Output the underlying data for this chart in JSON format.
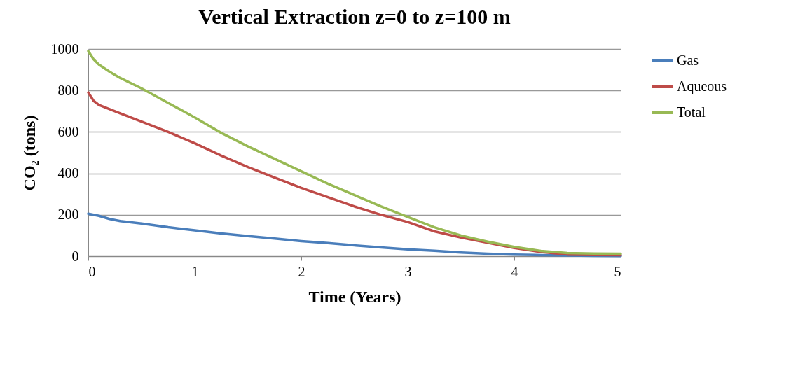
{
  "chart_data": {
    "type": "line",
    "title": "Vertical Extraction z=0 to z=100 m",
    "xlabel": "Time (Years)",
    "ylabel": "CO₂ (tons)",
    "x": [
      0,
      0.05,
      0.1,
      0.2,
      0.3,
      0.5,
      0.75,
      1,
      1.25,
      1.5,
      1.75,
      2,
      2.25,
      2.5,
      2.75,
      3,
      3.25,
      3.5,
      3.75,
      4,
      4.25,
      4.5,
      4.75,
      5
    ],
    "series": [
      {
        "name": "Gas",
        "color": "#4a7ebb",
        "values": [
          205,
          200,
          195,
          180,
          170,
          158,
          140,
          125,
          110,
          97,
          85,
          73,
          63,
          52,
          42,
          33,
          26,
          18,
          12,
          8,
          5,
          3,
          2,
          1
        ]
      },
      {
        "name": "Aqueous",
        "color": "#be4b48",
        "values": [
          790,
          750,
          730,
          710,
          690,
          650,
          600,
          545,
          485,
          430,
          380,
          330,
          285,
          240,
          200,
          165,
          120,
          90,
          65,
          40,
          20,
          8,
          6,
          5
        ]
      },
      {
        "name": "Total",
        "color": "#98b954",
        "values": [
          990,
          950,
          925,
          890,
          860,
          810,
          740,
          670,
          595,
          530,
          470,
          410,
          350,
          295,
          240,
          190,
          140,
          100,
          70,
          45,
          25,
          15,
          13,
          12
        ]
      }
    ],
    "xlim": [
      0,
      5
    ],
    "xticks": [
      0,
      1,
      2,
      3,
      4,
      5
    ],
    "ylim": [
      0,
      1000
    ],
    "yticks": [
      0,
      200,
      400,
      600,
      800,
      1000
    ],
    "grid": "y",
    "legend": "right",
    "marker": "none",
    "line_style": "solid"
  }
}
